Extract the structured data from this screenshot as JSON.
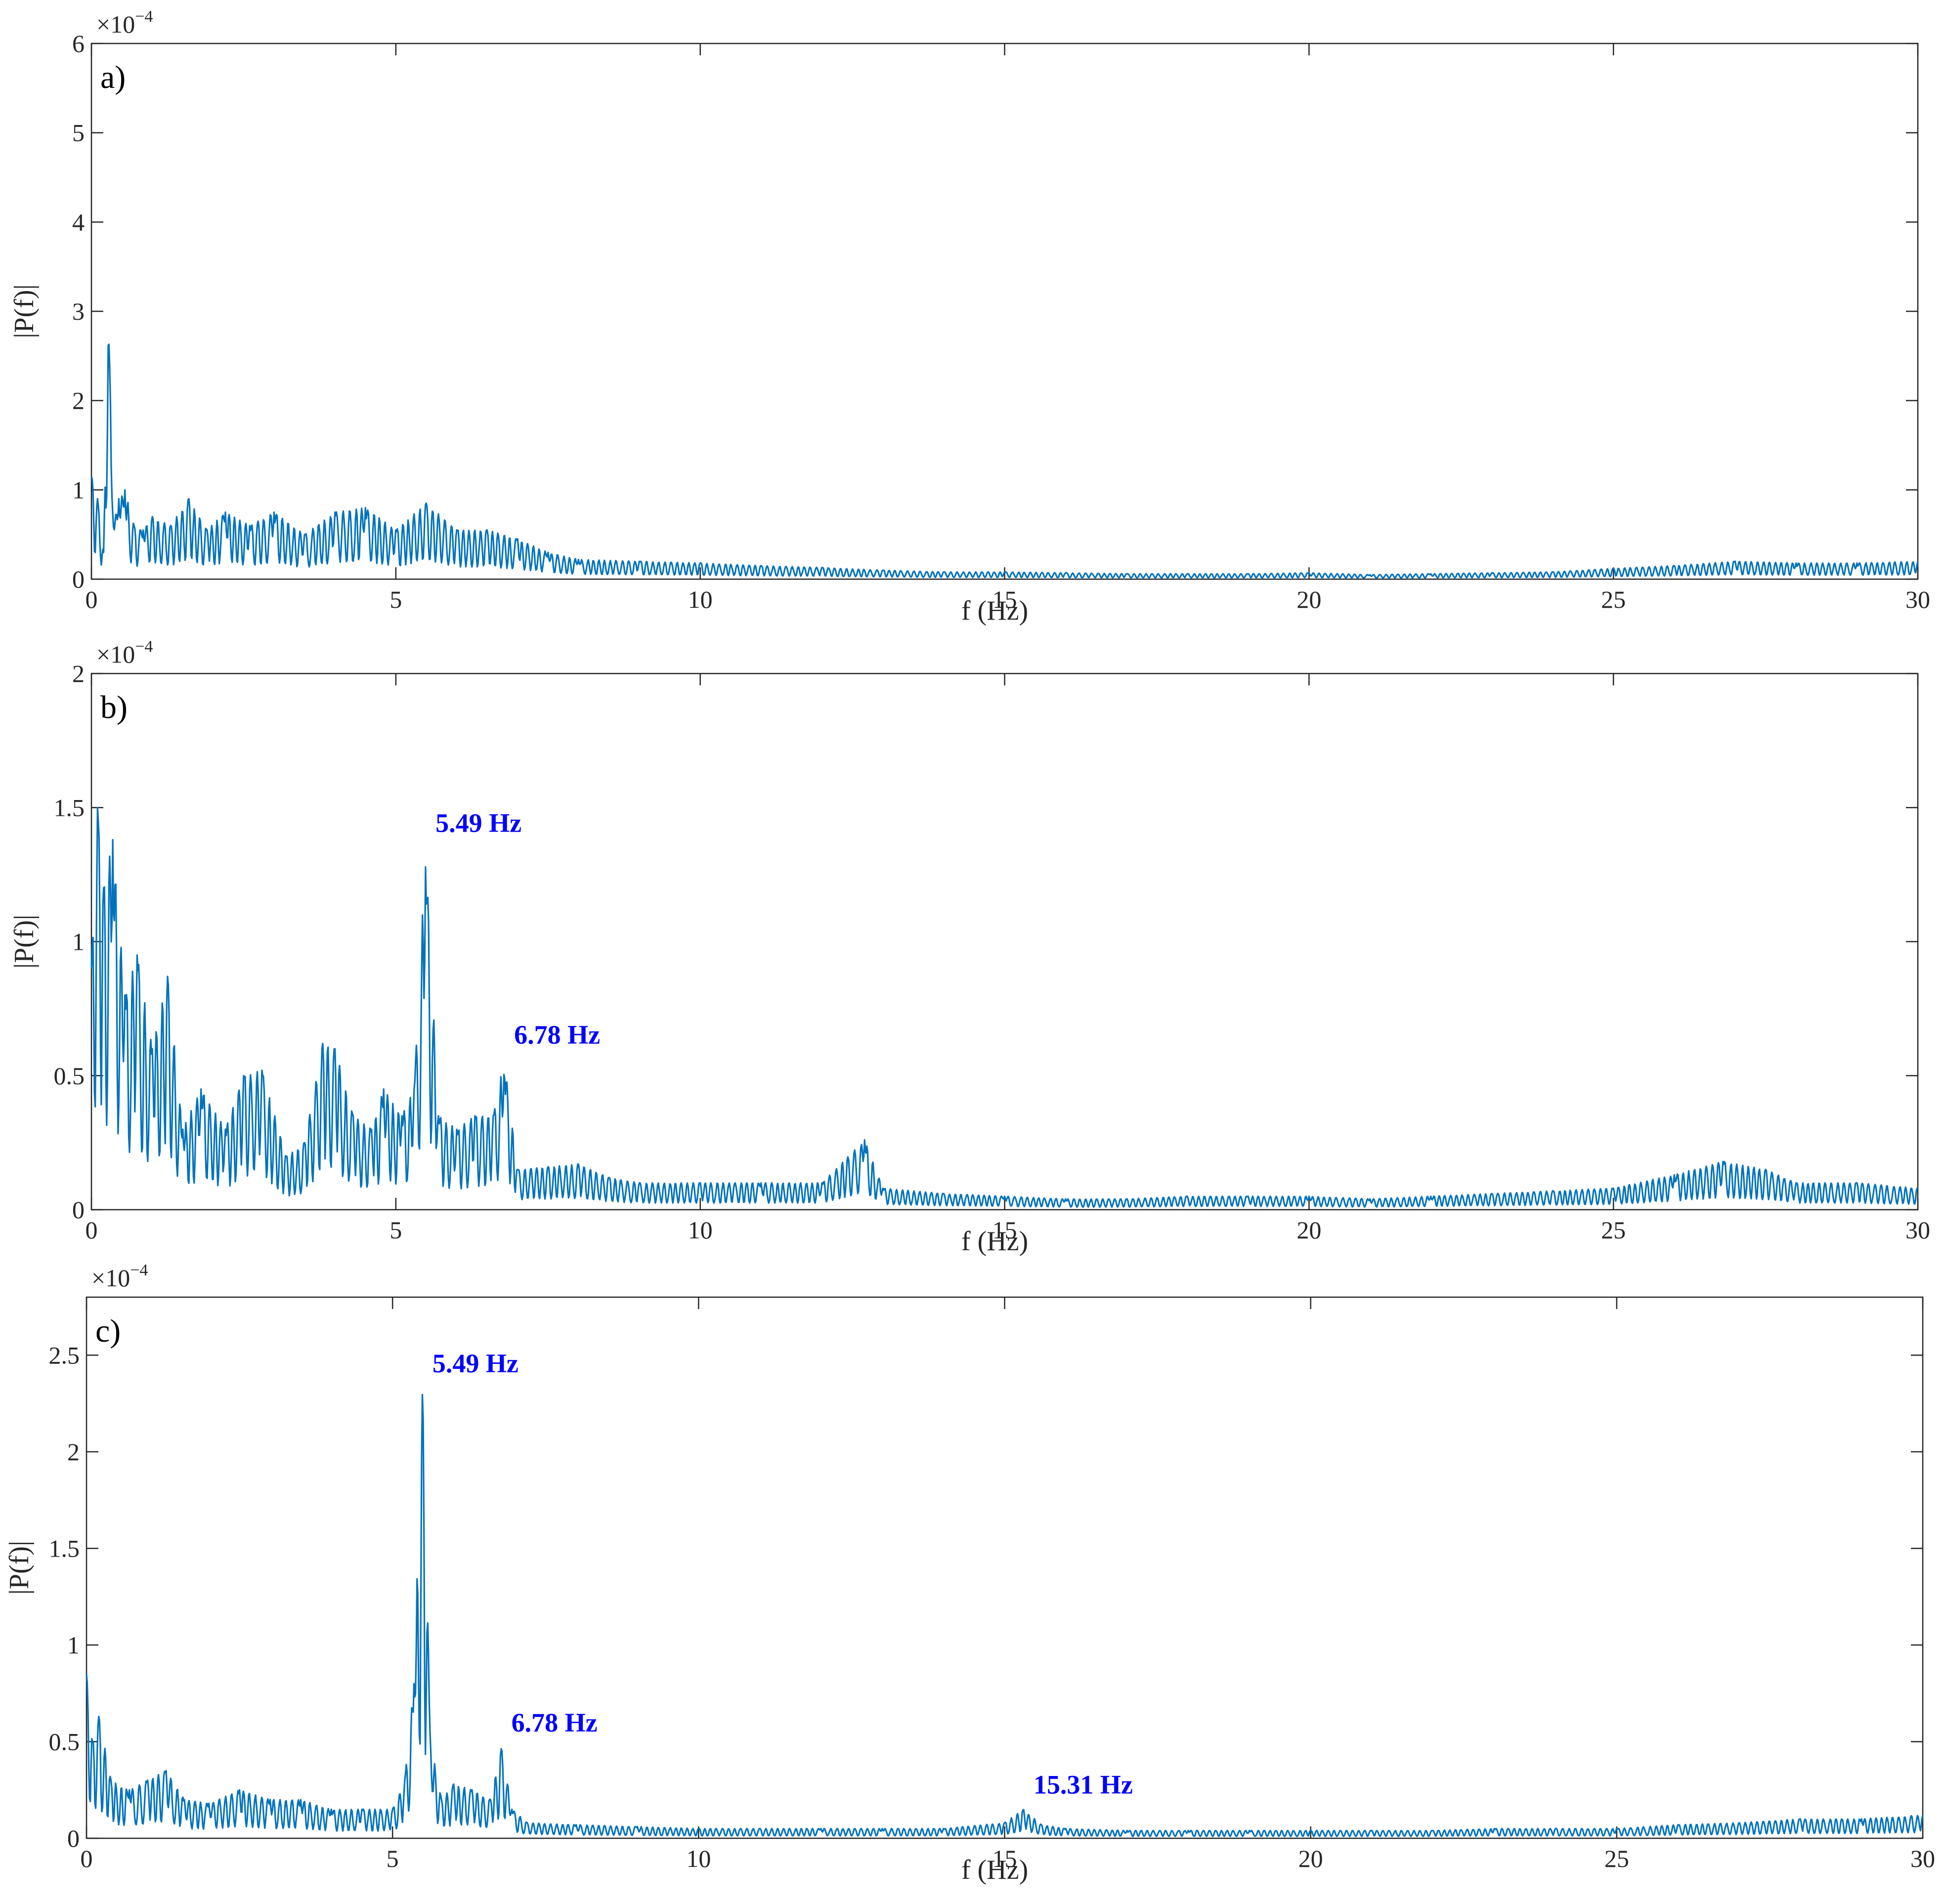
{
  "chart_data": [
    {
      "type": "line",
      "panel_label": "a)",
      "xlabel": "f (Hz)",
      "ylabel": "|P(f)|",
      "y_exponent_label": "×10",
      "y_exponent_power": "−4",
      "xlim": [
        0,
        30
      ],
      "ylim": [
        0,
        6
      ],
      "x_ticks": [
        0,
        5,
        10,
        15,
        20,
        25,
        30
      ],
      "y_ticks": [
        0,
        1,
        2,
        3,
        4,
        5,
        6
      ],
      "y_tick_labels": [
        "0",
        "1",
        "2",
        "3",
        "4",
        "5",
        "6"
      ],
      "grid": false,
      "line_color": "#0072BD",
      "series": [
        {
          "x": [
            0.0,
            0.1,
            0.2,
            0.28,
            0.36,
            0.45,
            0.55,
            0.7,
            0.85,
            1.0,
            1.3,
            1.6,
            1.9,
            2.2,
            2.6,
            3.0,
            3.5,
            4.0,
            4.5,
            5.0,
            5.5,
            6.0,
            6.5,
            7.0,
            7.5,
            8.0,
            9.0,
            10.0,
            11.0,
            12.0,
            13.0,
            14.0,
            15.0,
            16.0,
            17.0,
            18.0,
            19.0,
            20.0,
            21.0,
            22.0,
            23.0,
            24.0,
            25.0,
            26.0,
            27.0,
            28.0,
            29.0,
            30.0
          ],
          "y": [
            1.15,
            0.9,
            0.3,
            3.0,
            0.6,
            0.9,
            1.0,
            0.6,
            0.55,
            0.7,
            0.6,
            0.9,
            0.55,
            0.75,
            0.6,
            0.75,
            0.5,
            0.75,
            0.8,
            0.55,
            0.85,
            0.55,
            0.55,
            0.45,
            0.3,
            0.22,
            0.2,
            0.18,
            0.15,
            0.13,
            0.1,
            0.08,
            0.08,
            0.07,
            0.06,
            0.06,
            0.06,
            0.07,
            0.05,
            0.06,
            0.07,
            0.08,
            0.12,
            0.15,
            0.2,
            0.18,
            0.18,
            0.2
          ]
        }
      ],
      "annotations": []
    },
    {
      "type": "line",
      "panel_label": "b)",
      "xlabel": "f (Hz)",
      "ylabel": "|P(f)|",
      "y_exponent_label": "×10",
      "y_exponent_power": "−4",
      "xlim": [
        0,
        30
      ],
      "ylim": [
        0,
        2
      ],
      "x_ticks": [
        0,
        5,
        10,
        15,
        20,
        25,
        30
      ],
      "y_ticks": [
        0,
        0.5,
        1,
        1.5,
        2
      ],
      "y_tick_labels": [
        "0",
        "0.5",
        "1",
        "1.5",
        "2"
      ],
      "grid": false,
      "line_color": "#0072BD",
      "series": [
        {
          "x": [
            0.0,
            0.1,
            0.2,
            0.35,
            0.55,
            0.75,
            1.0,
            1.25,
            1.5,
            1.8,
            2.2,
            2.5,
            2.8,
            3.2,
            3.5,
            3.8,
            4.0,
            4.3,
            4.6,
            4.8,
            5.1,
            5.3,
            5.49,
            5.7,
            6.0,
            6.3,
            6.6,
            6.78,
            7.0,
            7.5,
            8.0,
            8.5,
            9.0,
            10.0,
            11.0,
            12.0,
            12.7,
            13.0,
            14.0,
            15.0,
            16.0,
            17.0,
            18.0,
            19.0,
            20.0,
            21.0,
            22.0,
            23.0,
            24.0,
            25.0,
            26.0,
            26.8,
            27.5,
            28.0,
            29.0,
            30.0
          ],
          "y": [
            0.9,
            1.5,
            1.2,
            1.38,
            0.8,
            0.95,
            0.6,
            0.87,
            0.3,
            0.45,
            0.3,
            0.5,
            0.52,
            0.2,
            0.25,
            0.62,
            0.6,
            0.35,
            0.3,
            0.45,
            0.35,
            0.45,
            1.35,
            0.35,
            0.3,
            0.35,
            0.35,
            0.56,
            0.15,
            0.16,
            0.17,
            0.12,
            0.1,
            0.1,
            0.1,
            0.1,
            0.26,
            0.08,
            0.06,
            0.05,
            0.04,
            0.04,
            0.05,
            0.05,
            0.05,
            0.04,
            0.05,
            0.06,
            0.07,
            0.08,
            0.13,
            0.18,
            0.15,
            0.1,
            0.1,
            0.08
          ]
        }
      ],
      "annotations": [
        {
          "text": "5.49 Hz",
          "x": 5.49,
          "y": 1.35,
          "color": "#0000FF"
        },
        {
          "text": "6.78 Hz",
          "x": 6.78,
          "y": 0.56,
          "color": "#0000FF"
        }
      ]
    },
    {
      "type": "line",
      "panel_label": "c)",
      "xlabel": "f (Hz)",
      "ylabel": "|P(f)|",
      "y_exponent_label": "×10",
      "y_exponent_power": "−4",
      "xlim": [
        0,
        30
      ],
      "ylim": [
        0,
        2.8
      ],
      "x_ticks": [
        0,
        5,
        10,
        15,
        20,
        25,
        30
      ],
      "y_ticks": [
        0,
        0.5,
        1,
        1.5,
        2,
        2.5
      ],
      "y_tick_labels": [
        "0",
        "0.5",
        "1",
        "1.5",
        "2",
        "2.5"
      ],
      "grid": false,
      "line_color": "#0072BD",
      "series": [
        {
          "x": [
            0.0,
            0.1,
            0.2,
            0.4,
            0.7,
            1.0,
            1.3,
            1.6,
            2.0,
            2.5,
            3.0,
            3.5,
            4.0,
            4.5,
            5.0,
            5.2,
            5.35,
            5.49,
            5.62,
            5.8,
            6.0,
            6.3,
            6.6,
            6.78,
            6.95,
            7.2,
            8.0,
            9.0,
            10.0,
            11.0,
            12.0,
            13.0,
            14.0,
            15.0,
            15.31,
            15.6,
            16.0,
            17.0,
            18.0,
            19.0,
            20.0,
            21.0,
            22.0,
            23.0,
            24.0,
            25.0,
            26.0,
            27.0,
            28.0,
            29.0,
            30.0
          ],
          "y": [
            0.85,
            0.5,
            0.63,
            0.3,
            0.25,
            0.3,
            0.35,
            0.2,
            0.18,
            0.25,
            0.2,
            0.2,
            0.15,
            0.15,
            0.15,
            0.3,
            0.8,
            2.33,
            0.5,
            0.2,
            0.28,
            0.25,
            0.2,
            0.47,
            0.15,
            0.08,
            0.07,
            0.06,
            0.05,
            0.05,
            0.05,
            0.05,
            0.05,
            0.08,
            0.15,
            0.07,
            0.05,
            0.04,
            0.04,
            0.04,
            0.04,
            0.04,
            0.04,
            0.05,
            0.05,
            0.05,
            0.07,
            0.08,
            0.1,
            0.1,
            0.12
          ]
        }
      ],
      "annotations": [
        {
          "text": "5.49 Hz",
          "x": 5.49,
          "y": 2.33,
          "color": "#0000FF"
        },
        {
          "text": "6.78 Hz",
          "x": 6.78,
          "y": 0.47,
          "color": "#0000FF"
        },
        {
          "text": "15.31 Hz",
          "x": 15.31,
          "y": 0.15,
          "color": "#0000FF"
        }
      ]
    }
  ]
}
